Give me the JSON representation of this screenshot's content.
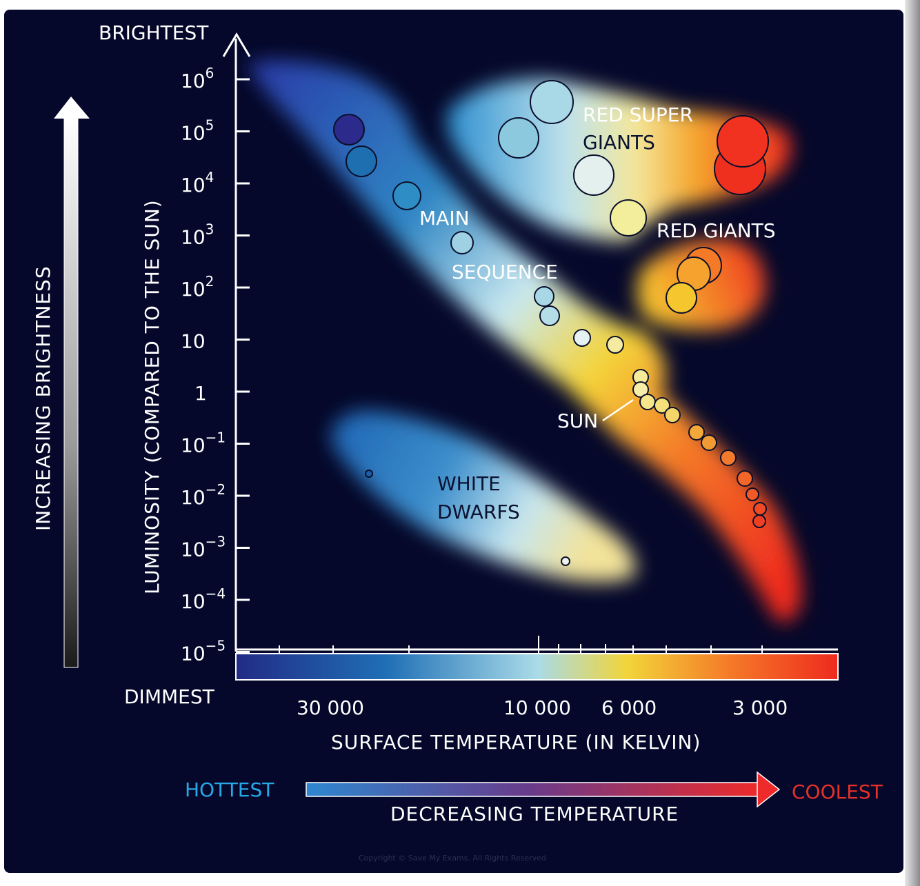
{
  "y_axis": {
    "top_label": "BRIGHTEST",
    "bottom_label": "DIMMEST",
    "title": "LUMINOSITY (COMPARED TO THE SUN)",
    "ticks": [
      {
        "base": "10",
        "exp": "6"
      },
      {
        "base": "10",
        "exp": "5"
      },
      {
        "base": "10",
        "exp": "4"
      },
      {
        "base": "10",
        "exp": "3"
      },
      {
        "base": "10",
        "exp": "2"
      },
      {
        "base": "10",
        "exp": ""
      },
      {
        "base": "1",
        "exp": ""
      },
      {
        "base": "10",
        "exp": "−1"
      },
      {
        "base": "10",
        "exp": "−2"
      },
      {
        "base": "10",
        "exp": "−3"
      },
      {
        "base": "10",
        "exp": "−4"
      },
      {
        "base": "10",
        "exp": "−5"
      }
    ]
  },
  "x_axis": {
    "title": "SURFACE TEMPERATURE (IN KELVIN)",
    "tick_labels": [
      "30 000",
      "10 000",
      "6 000",
      "3 000"
    ]
  },
  "side_arrow_label": "INCREASING BRIGHTNESS",
  "bottom_arrow": {
    "left_label": "HOTTEST",
    "right_label": "COOLEST",
    "caption": "DECREASING TEMPERATURE"
  },
  "regions": {
    "main_sequence_1": "MAIN",
    "main_sequence_2": "SEQUENCE",
    "red_super_giants_1": "RED SUPER",
    "red_super_giants_2": "GIANTS",
    "red_giants": "RED GIANTS",
    "white_dwarfs_1": "WHITE",
    "white_dwarfs_2": "DWARFS",
    "sun": "SUN"
  },
  "colors": {
    "background": "#05082a",
    "hot": "#2a3aa8",
    "mid": "#bfe3f0",
    "warm": "#f5d23a",
    "cool": "#f0321e",
    "hottest_text": "#27a9e8",
    "coolest_text": "#e8302a"
  },
  "copyright": "Copyright © Save My Exams. All Rights Reserved"
}
